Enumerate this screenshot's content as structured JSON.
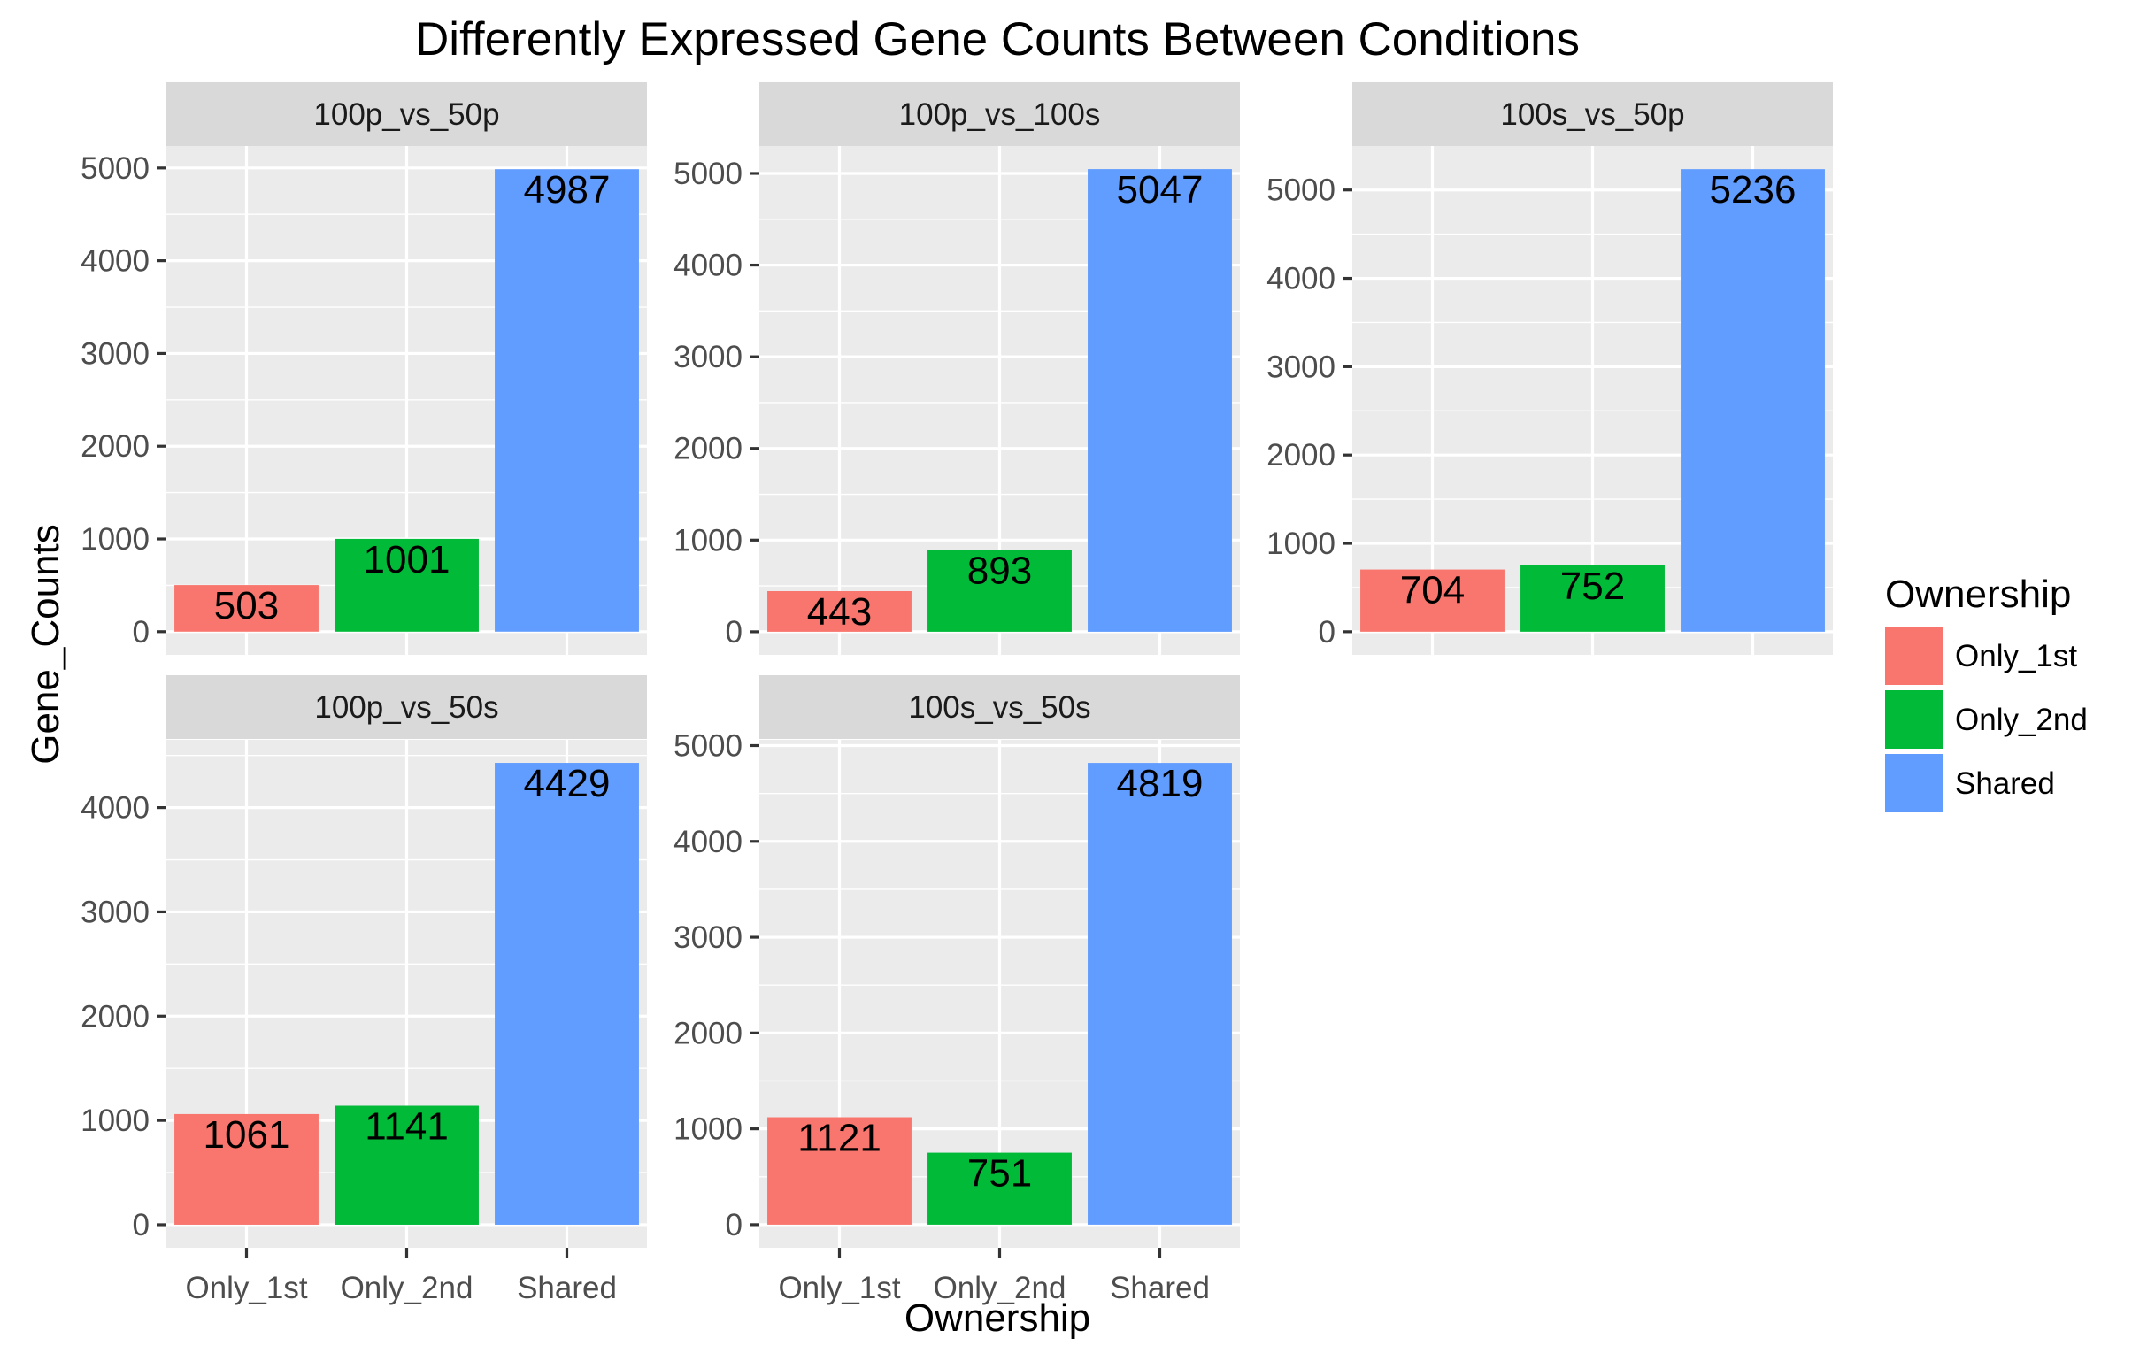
{
  "chart_data": {
    "type": "bar",
    "title": "Differently Expressed Gene Counts Between Conditions",
    "xlabel": "Ownership",
    "ylabel": "Gene_Counts",
    "categories": [
      "Only_1st",
      "Only_2nd",
      "Shared"
    ],
    "facet_scales": "free_y",
    "grid": true,
    "legend": {
      "title": "Ownership",
      "position": "right",
      "entries": [
        {
          "label": "Only_1st",
          "color": "#F8766D"
        },
        {
          "label": "Only_2nd",
          "color": "#00BA38"
        },
        {
          "label": "Shared",
          "color": "#619CFF"
        }
      ]
    },
    "panels": [
      {
        "name": "100p_vs_50p",
        "values": [
          503,
          1001,
          4987
        ],
        "ylim": [
          -250,
          5237
        ],
        "yticks": [
          0,
          1000,
          2000,
          3000,
          4000,
          5000
        ]
      },
      {
        "name": "100p_vs_100s",
        "values": [
          443,
          893,
          5047
        ],
        "ylim": [
          -252,
          5299
        ],
        "yticks": [
          0,
          1000,
          2000,
          3000,
          4000,
          5000
        ]
      },
      {
        "name": "100s_vs_50p",
        "values": [
          704,
          752,
          5236
        ],
        "ylim": [
          -262,
          5498
        ],
        "yticks": [
          0,
          1000,
          2000,
          3000,
          4000,
          5000
        ]
      },
      {
        "name": "100p_vs_50s",
        "values": [
          1061,
          1141,
          4429
        ],
        "ylim": [
          -221,
          4650
        ],
        "yticks": [
          0,
          1000,
          2000,
          3000,
          4000
        ]
      },
      {
        "name": "100s_vs_50s",
        "values": [
          1121,
          751,
          4819
        ],
        "ylim": [
          -241,
          5060
        ],
        "yticks": [
          0,
          1000,
          2000,
          3000,
          4000,
          5000
        ]
      }
    ]
  }
}
